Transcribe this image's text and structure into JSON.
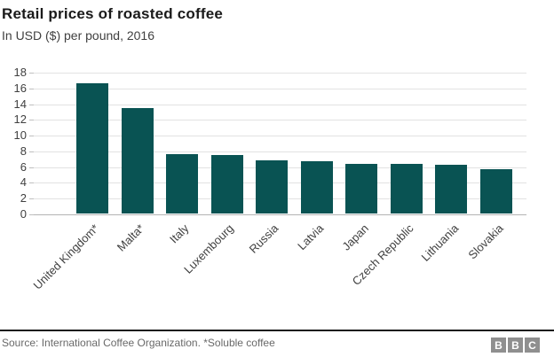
{
  "header": {
    "title": "Retail prices of roasted coffee",
    "subtitle": "In USD ($) per pound, 2016"
  },
  "chart_data": {
    "type": "bar",
    "title": "Retail prices of roasted coffee",
    "subtitle": "In USD ($) per pound, 2016",
    "categories": [
      "United Kingdom*",
      "Malta*",
      "Italy",
      "Luxembourg",
      "Russia",
      "Latvia",
      "Japan",
      "Czech Republic",
      "Lithuania",
      "Slovakia"
    ],
    "values": [
      16.5,
      13.4,
      7.5,
      7.4,
      6.7,
      6.6,
      6.3,
      6.3,
      6.2,
      5.6
    ],
    "xlabel": "",
    "ylabel": "",
    "ylim": [
      0,
      18
    ],
    "yticks": [
      0,
      2,
      4,
      6,
      8,
      10,
      12,
      14,
      16,
      18
    ],
    "grid": true,
    "legend": null,
    "x_label_rotation_deg": -45,
    "bar_color": "#095353"
  },
  "footer": {
    "source": "Source: International Coffee Organization. *Soluble coffee",
    "logo_letters": [
      "B",
      "B",
      "C"
    ]
  },
  "colors": {
    "background": "#ffffff",
    "bar": "#095353",
    "gridline": "#e2e2e2",
    "baseline": "#b3b3b3",
    "title": "#1a1a1a",
    "subtitle": "#404040",
    "axis_text": "#404040",
    "source_text": "#696969",
    "logo_box": "#8f8f8f",
    "footer_rule": "#1a1a1a"
  }
}
